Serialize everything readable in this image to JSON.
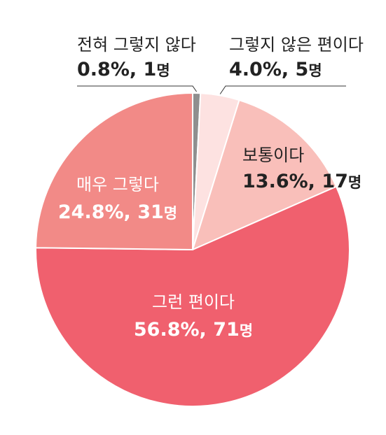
{
  "chart_data": {
    "type": "pie",
    "title": "",
    "unit": "명",
    "slices": [
      {
        "label": "전혀 그렇지 않다",
        "percent": "0.8%",
        "count": "1",
        "value": 0.8,
        "color": "#8f8f8f",
        "label_color": "#222222"
      },
      {
        "label": "그렇지 않은 편이다",
        "percent": "4.0%",
        "count": "5",
        "value": 4.0,
        "color": "#fde2e1",
        "label_color": "#222222"
      },
      {
        "label": "보통이다",
        "percent": "13.6%",
        "count": "17",
        "value": 13.6,
        "color": "#f9bfba",
        "label_color": "#222222"
      },
      {
        "label": "그런 편이다",
        "percent": "56.8%",
        "count": "71",
        "value": 56.8,
        "color": "#f0606e",
        "label_color": "#ffffff"
      },
      {
        "label": "매우 그렇다",
        "percent": "24.8%",
        "count": "31",
        "value": 24.8,
        "color": "#f28a87",
        "label_color": "#ffffff"
      }
    ]
  }
}
